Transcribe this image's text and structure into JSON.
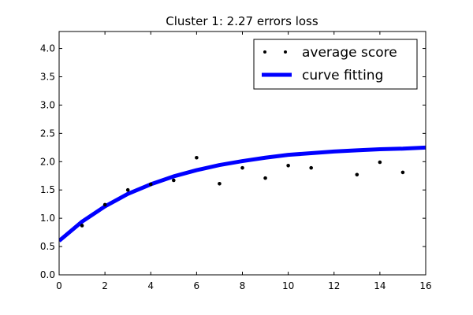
{
  "chart_data": {
    "type": "scatter",
    "title": "Cluster 1: 2.27 errors loss",
    "xlabel": "",
    "ylabel": "",
    "xlim": [
      0,
      16
    ],
    "ylim": [
      0,
      4.3
    ],
    "x_ticks": [
      0,
      2,
      4,
      6,
      8,
      10,
      12,
      14,
      16
    ],
    "y_ticks": [
      0.0,
      0.5,
      1.0,
      1.5,
      2.0,
      2.5,
      3.0,
      3.5,
      4.0
    ],
    "x_tick_labels": [
      "0",
      "2",
      "4",
      "6",
      "8",
      "10",
      "12",
      "14",
      "16"
    ],
    "y_tick_labels": [
      "0.0",
      "0.5",
      "1.0",
      "1.5",
      "2.0",
      "2.5",
      "3.0",
      "3.5",
      "4.0"
    ],
    "grid": false,
    "legend_position": "upper right",
    "series": [
      {
        "name": "average score",
        "kind": "scatter",
        "color": "#000000",
        "x": [
          1,
          2,
          3,
          4,
          5,
          6,
          7,
          8,
          9,
          10,
          11,
          13,
          14,
          15
        ],
        "y": [
          0.87,
          1.24,
          1.5,
          1.6,
          1.67,
          2.07,
          1.61,
          1.89,
          1.71,
          1.93,
          1.89,
          1.77,
          1.99,
          1.81
        ]
      },
      {
        "name": "curve fitting",
        "kind": "line",
        "color": "#0000ff",
        "x": [
          0,
          1,
          2,
          3,
          4,
          5,
          6,
          7,
          8,
          9,
          10,
          11,
          12,
          13,
          14,
          15,
          16
        ],
        "y": [
          0.6,
          0.94,
          1.21,
          1.43,
          1.6,
          1.74,
          1.85,
          1.94,
          2.01,
          2.07,
          2.12,
          2.15,
          2.18,
          2.2,
          2.22,
          2.23,
          2.25
        ]
      }
    ]
  }
}
